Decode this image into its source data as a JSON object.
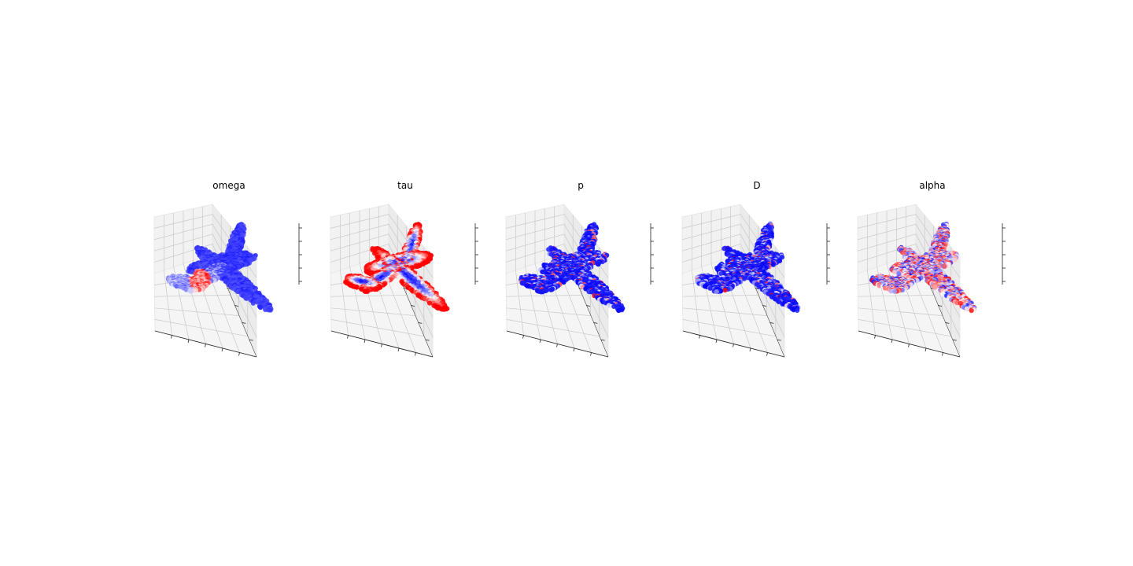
{
  "figure": {
    "background": "#ffffff",
    "colormap": "bwr",
    "colormap_colors": [
      "#0000ff",
      "#ffffff",
      "#ff0000"
    ]
  },
  "chart_data": [
    {
      "type": "scatter",
      "projection": "3d",
      "title": "omega",
      "pattern": "mostly-low-with-red-patch",
      "tick_labels": "hidden",
      "grid": true
    },
    {
      "type": "scatter",
      "projection": "3d",
      "title": "tau",
      "pattern": "red-edges-blue-core",
      "tick_labels": "hidden",
      "grid": true
    },
    {
      "type": "scatter",
      "projection": "3d",
      "title": "p",
      "pattern": "mostly-low-sparse-red",
      "tick_labels": "hidden",
      "grid": true
    },
    {
      "type": "scatter",
      "projection": "3d",
      "title": "D",
      "pattern": "mostly-low-sparse-red",
      "tick_labels": "hidden",
      "grid": true
    },
    {
      "type": "scatter",
      "projection": "3d",
      "title": "alpha",
      "pattern": "mixed-random",
      "tick_labels": "hidden",
      "grid": true
    }
  ]
}
